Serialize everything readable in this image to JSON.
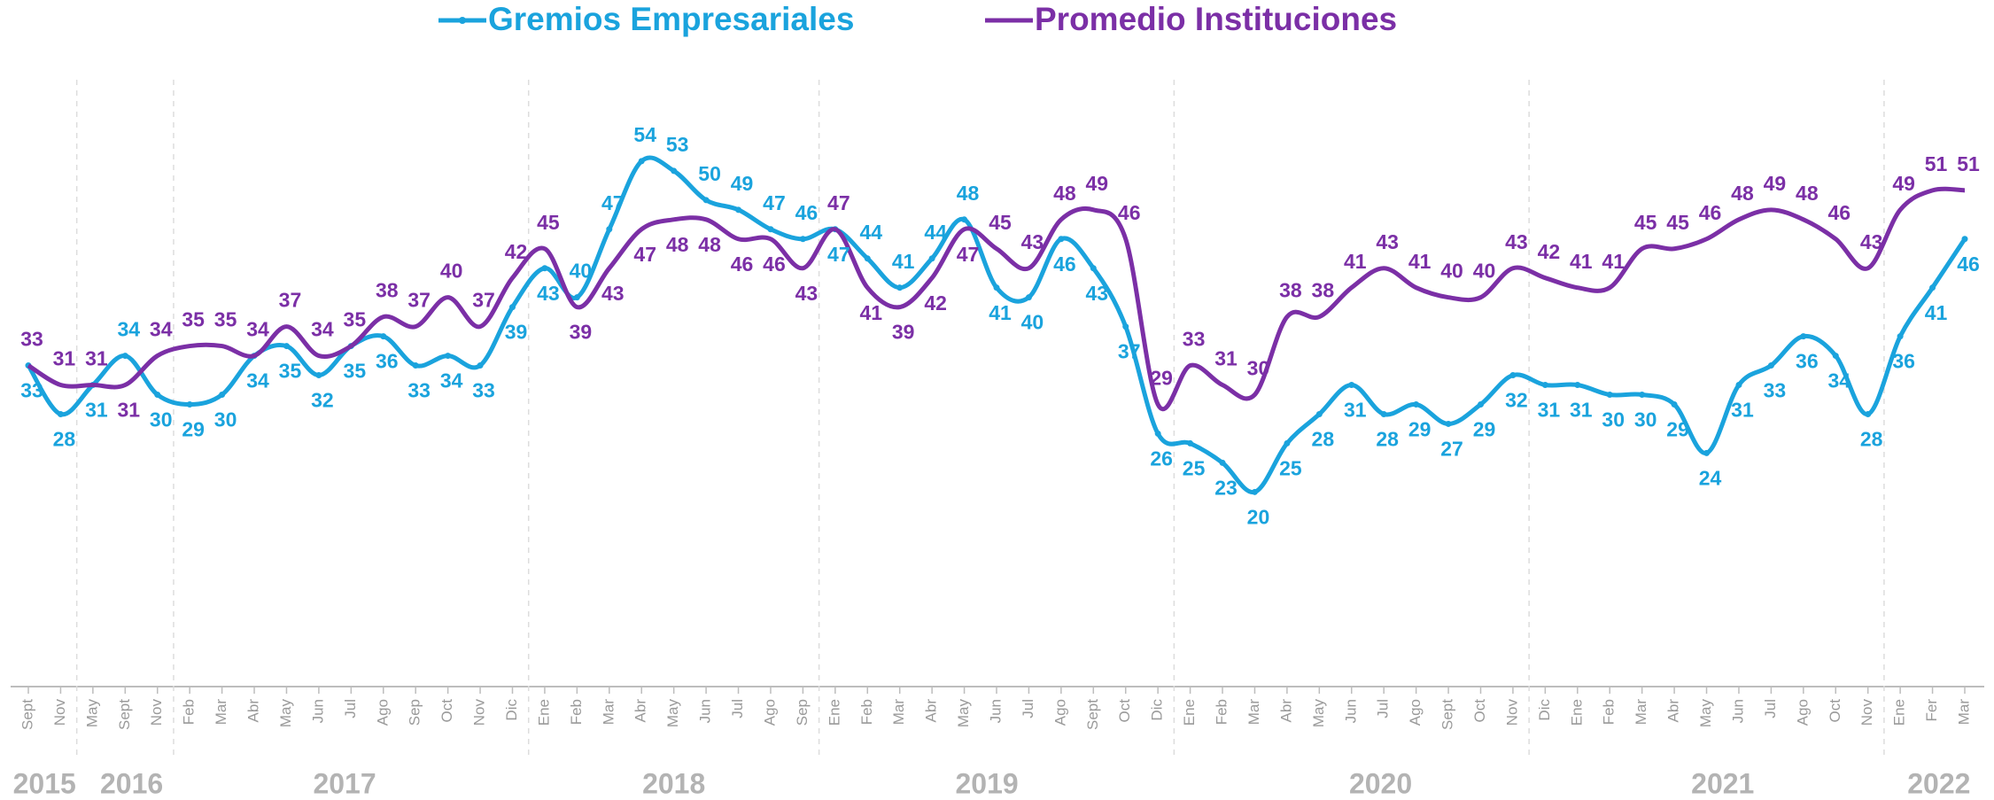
{
  "chart_data": {
    "type": "line",
    "categories": [
      "Sept",
      "Nov",
      "May",
      "Sept",
      "Nov",
      "Feb",
      "Mar",
      "Abr",
      "May",
      "Jun",
      "Jul",
      "Ago",
      "Sep",
      "Oct",
      "Nov",
      "Dic",
      "Ene",
      "Feb",
      "Mar",
      "Abr",
      "May",
      "Jun",
      "Jul",
      "Ago",
      "Sep",
      "Ene",
      "Feb",
      "Mar",
      "Abr",
      "May",
      "Jun",
      "Jul",
      "Ago",
      "Sept",
      "Oct",
      "Dic",
      "Ene",
      "Feb",
      "Mar",
      "Abr",
      "May",
      "Jun",
      "Jul",
      "Ago",
      "Sept",
      "Oct",
      "Nov",
      "Dic",
      "Ene",
      "Feb",
      "Mar",
      "Abr",
      "May",
      "Jun",
      "Jul",
      "Ago",
      "Oct",
      "Nov",
      "Ene",
      "Fer",
      "Mar"
    ],
    "years": [
      "2015",
      "2016",
      "2017",
      "2018",
      "2019",
      "2020",
      "2021",
      "2022"
    ],
    "series": [
      {
        "name": "Gremios Empresariales",
        "color": "#1aa3dd",
        "values": [
          33,
          28,
          31,
          34,
          30,
          29,
          30,
          34,
          35,
          32,
          35,
          36,
          33,
          34,
          33,
          39,
          43,
          40,
          47,
          54,
          53,
          50,
          49,
          47,
          46,
          47,
          44,
          41,
          44,
          48,
          41,
          40,
          46,
          43,
          37,
          26,
          25,
          23,
          20,
          25,
          28,
          31,
          28,
          29,
          27,
          29,
          32,
          31,
          31,
          30,
          30,
          29,
          24,
          31,
          33,
          36,
          34,
          28,
          36,
          41,
          46
        ]
      },
      {
        "name": "Promedio Instituciones",
        "color": "#7b2fa6",
        "values": [
          33,
          31,
          31,
          31,
          34,
          35,
          35,
          34,
          37,
          34,
          35,
          38,
          37,
          40,
          37,
          42,
          45,
          39,
          43,
          47,
          48,
          48,
          46,
          46,
          43,
          47,
          41,
          39,
          42,
          47,
          45,
          43,
          48,
          49,
          46,
          29,
          33,
          31,
          30,
          38,
          38,
          41,
          43,
          41,
          40,
          40,
          43,
          42,
          41,
          41,
          45,
          45,
          46,
          48,
          49,
          48,
          46,
          43,
          49,
          51,
          51
        ]
      }
    ],
    "ylim": [
      0,
      60
    ]
  }
}
